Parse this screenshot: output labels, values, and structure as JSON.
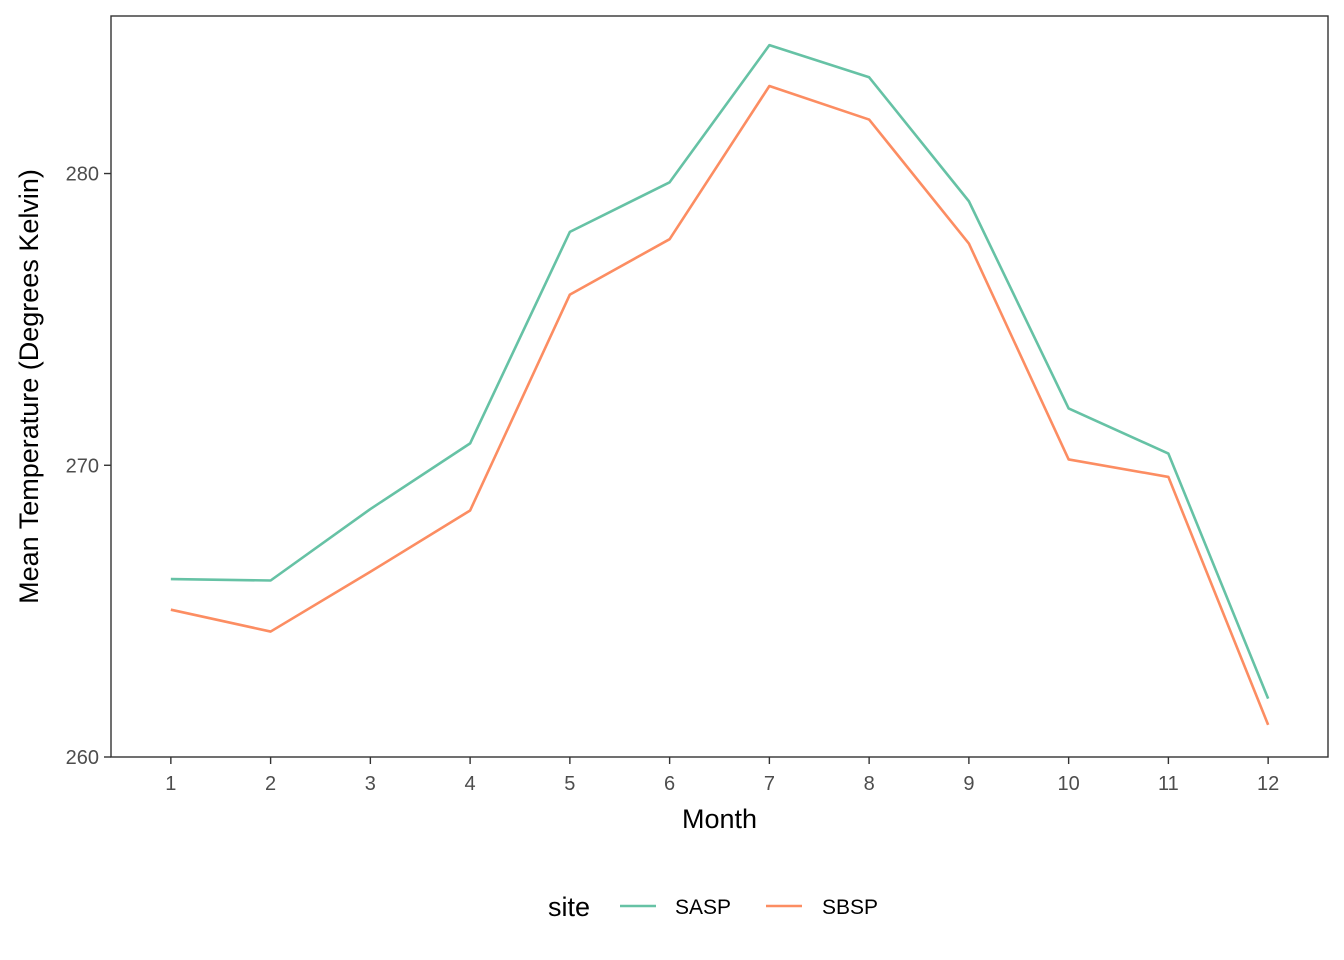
{
  "chart_data": {
    "type": "line",
    "title": "",
    "xlabel": "Month",
    "ylabel": "Mean Temperature (Degrees Kelvin)",
    "x": [
      1,
      2,
      3,
      4,
      5,
      6,
      7,
      8,
      9,
      10,
      11,
      12
    ],
    "x_ticks": [
      "1",
      "2",
      "3",
      "4",
      "5",
      "6",
      "7",
      "8",
      "9",
      "10",
      "11",
      "12"
    ],
    "xlim": [
      0.4,
      12.6
    ],
    "ylim": [
      260,
      285.4
    ],
    "y_ticks": [
      260,
      270,
      280
    ],
    "y_tick_labels": [
      "260",
      "270",
      "280"
    ],
    "grid": false,
    "legend": {
      "title": "site",
      "position": "bottom"
    },
    "series": [
      {
        "name": "SASP",
        "color": "#66c2a5",
        "values": [
          266.1,
          266.05,
          268.5,
          270.75,
          278.0,
          279.7,
          284.4,
          283.3,
          279.05,
          271.95,
          270.4,
          262.0
        ]
      },
      {
        "name": "SBSP",
        "color": "#fc8d62",
        "values": [
          265.05,
          264.3,
          266.35,
          268.45,
          275.85,
          277.75,
          283.0,
          281.85,
          277.6,
          270.2,
          269.6,
          261.1
        ]
      }
    ]
  }
}
